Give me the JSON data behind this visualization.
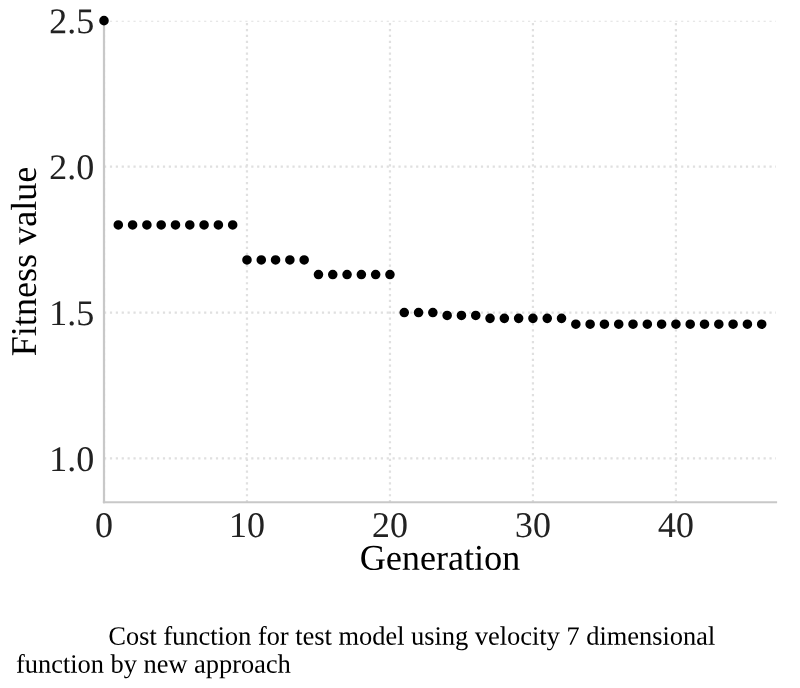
{
  "chart_data": {
    "type": "scatter",
    "xlabel": "Generation",
    "ylabel": "Fitness value",
    "x": [
      0,
      1,
      2,
      3,
      4,
      5,
      6,
      7,
      8,
      9,
      10,
      11,
      12,
      13,
      14,
      15,
      16,
      17,
      18,
      19,
      20,
      21,
      22,
      23,
      24,
      25,
      26,
      27,
      28,
      29,
      30,
      31,
      32,
      33,
      34,
      35,
      36,
      37,
      38,
      39,
      40,
      41,
      42,
      43,
      44,
      45,
      46
    ],
    "series": [
      {
        "color": "#000000",
        "values": [
          2.5,
          1.8,
          1.8,
          1.8,
          1.8,
          1.8,
          1.8,
          1.8,
          1.8,
          1.8,
          1.68,
          1.68,
          1.68,
          1.68,
          1.68,
          1.63,
          1.63,
          1.63,
          1.63,
          1.63,
          1.63,
          1.5,
          1.5,
          1.5,
          1.49,
          1.49,
          1.49,
          1.48,
          1.48,
          1.48,
          1.48,
          1.48,
          1.48,
          1.46,
          1.46,
          1.46,
          1.46,
          1.46,
          1.46,
          1.46,
          1.46,
          1.46,
          1.46,
          1.46,
          1.46,
          1.46,
          1.46
        ]
      }
    ],
    "xlim": [
      0,
      47
    ],
    "ylim": [
      0.85,
      2.5
    ],
    "xticks": [
      0,
      10,
      20,
      30,
      40
    ],
    "yticks": [
      {
        "value": 1,
        "label": "1.0"
      },
      1.5,
      {
        "value": 2,
        "label": "2.0"
      },
      2.5
    ],
    "grid": true,
    "marker": "circle",
    "annotations": [
      "Cost function for test model using velocity 7 dimensional function by new approach"
    ]
  }
}
